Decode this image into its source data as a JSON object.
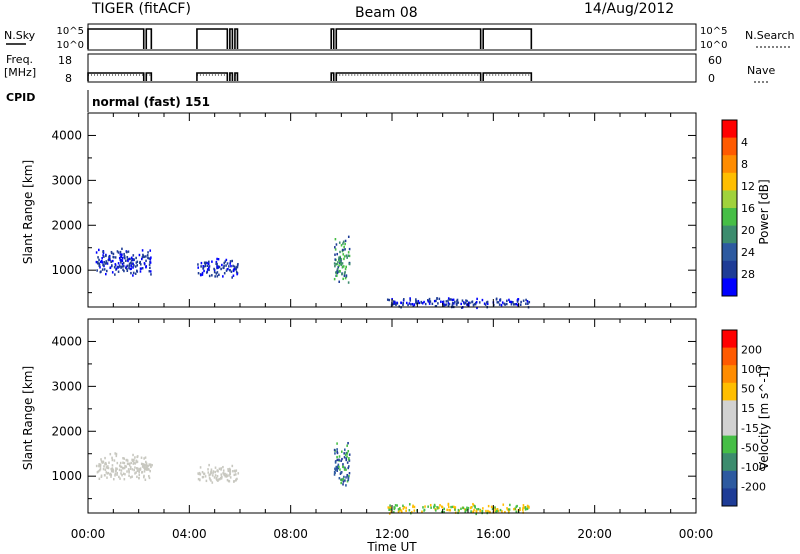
{
  "header": {
    "radar": "TIGER (fitACF)",
    "beam": "Beam 08",
    "date": "14/Aug/2012"
  },
  "panels": {
    "nsky_label": "N.Sky",
    "nsky_ticks": [
      "10^5",
      "10^0"
    ],
    "nsearch_label": "N.Search",
    "freq_label": "Freq.",
    "freq_unit": "[MHz]",
    "freq_ticks": [
      "18",
      "8"
    ],
    "nave_label": "Nave",
    "nave_ticks": [
      "60",
      "0"
    ],
    "cpid_label": "CPID",
    "cpid_value": "normal (fast) 151"
  },
  "colors": {
    "power": [
      "#0000ff",
      "#1e3c96",
      "#2d5aa0",
      "#3c8c6e",
      "#46be46",
      "#a0d23c",
      "#ffbe00",
      "#ff8c00",
      "#ff5a00",
      "#ff0000"
    ],
    "velocity": [
      "#ff0000",
      "#ff5a00",
      "#ff8c00",
      "#ffbe00",
      "#d2d2d2",
      "#d2d2d2",
      "#46be46",
      "#3c8c6e",
      "#2d5aa0",
      "#1e3c96"
    ],
    "ground_scatter": "#c8c8c0"
  },
  "chart_data": [
    {
      "type": "heatmap",
      "title": "Power",
      "ylabel": "Slant Range [km]",
      "ylim": [
        180,
        4500
      ],
      "yticks": [
        1000,
        2000,
        3000,
        4000
      ],
      "xlim": [
        0,
        24
      ],
      "colorbar": {
        "label": "Power [dB]",
        "ticks": [
          "4",
          "8",
          "12",
          "16",
          "20",
          "24",
          "28"
        ]
      },
      "scatter_regions": [
        {
          "t": [
            0.3,
            2.5
          ],
          "r": [
            900,
            1550
          ],
          "level": 1
        },
        {
          "t": [
            4.3,
            5.9
          ],
          "r": [
            850,
            1300
          ],
          "level": 1
        },
        {
          "t": [
            9.7,
            10.3
          ],
          "r": [
            700,
            1800
          ],
          "level": 2
        },
        {
          "t": [
            11.8,
            17.4
          ],
          "r": [
            180,
            420
          ],
          "level": 1
        }
      ]
    },
    {
      "type": "heatmap",
      "title": "Velocity",
      "ylabel": "Slant Range [km]",
      "xlabel": "Time UT",
      "ylim": [
        180,
        4500
      ],
      "yticks": [
        1000,
        2000,
        3000,
        4000
      ],
      "xlim": [
        0,
        24
      ],
      "xticks": [
        "00:00",
        "04:00",
        "08:00",
        "12:00",
        "16:00",
        "20:00",
        "00:00"
      ],
      "colorbar": {
        "label": "Velocity [m s^-1]",
        "ticks": [
          "200",
          "100",
          "50",
          "15",
          "-15",
          "-50",
          "-100",
          "-200"
        ]
      },
      "scatter_regions": [
        {
          "t": [
            0.3,
            2.5
          ],
          "r": [
            900,
            1550
          ],
          "category": "ground"
        },
        {
          "t": [
            4.3,
            5.9
          ],
          "r": [
            850,
            1300
          ],
          "category": "ground"
        },
        {
          "t": [
            9.7,
            10.3
          ],
          "r": [
            700,
            1800
          ],
          "category": "positive"
        },
        {
          "t": [
            11.8,
            17.4
          ],
          "r": [
            180,
            420
          ],
          "category": "weak"
        }
      ]
    }
  ],
  "operation_segments": [
    [
      0,
      2.2
    ],
    [
      2.3,
      2.5
    ],
    [
      4.3,
      5.5
    ],
    [
      5.6,
      5.7
    ],
    [
      5.8,
      5.9
    ],
    [
      9.6,
      9.7
    ],
    [
      9.8,
      15.5
    ],
    [
      15.6,
      17.5
    ]
  ]
}
